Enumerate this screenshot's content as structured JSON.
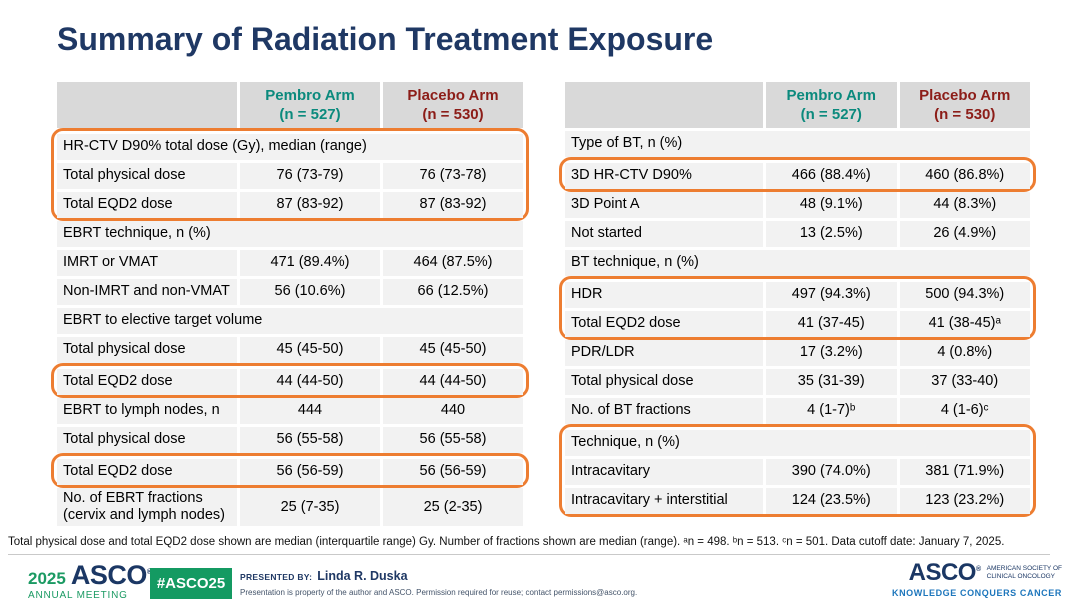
{
  "title": "Summary of Radiation Treatment Exposure",
  "columns": {
    "pembro": {
      "name": "Pembro Arm",
      "n": "(n = 527)"
    },
    "placebo": {
      "name": "Placebo Arm",
      "n": "(n = 530)"
    }
  },
  "left_table": {
    "rows": [
      {
        "label": "HR-CTV D90% total dose (Gy), median (range)",
        "section": true,
        "hl": "g1"
      },
      {
        "label": "Total physical dose",
        "indent": 1,
        "values": [
          "76 (73-79)",
          "76 (73-78)"
        ],
        "hl": "g1"
      },
      {
        "label": "Total EQD2 dose",
        "indent": 1,
        "values": [
          "87 (83-92)",
          "87 (83-92)"
        ],
        "hl": "g1"
      },
      {
        "label": "EBRT technique, n (%)",
        "section": true
      },
      {
        "label": "IMRT or VMAT",
        "indent": 1,
        "values": [
          "471 (89.4%)",
          "464 (87.5%)"
        ]
      },
      {
        "label": "Non-IMRT and non-VMAT",
        "indent": 1,
        "values": [
          "56 (10.6%)",
          "66 (12.5%)"
        ]
      },
      {
        "label": "EBRT to elective target volume",
        "section": true
      },
      {
        "label": "Total physical dose",
        "indent": 1,
        "values": [
          "45 (45-50)",
          "45 (45-50)"
        ]
      },
      {
        "label": "Total EQD2 dose",
        "indent": 1,
        "values": [
          "44 (44-50)",
          "44 (44-50)"
        ],
        "hl": "g2"
      },
      {
        "label": "EBRT to lymph nodes, n",
        "indent": 0,
        "values": [
          "444",
          "440"
        ]
      },
      {
        "label": "Total physical dose",
        "indent": 1,
        "values": [
          "56 (55-58)",
          "56 (55-58)"
        ]
      },
      {
        "label": "Total EQD2 dose",
        "indent": 1,
        "values": [
          "56 (56-59)",
          "56 (56-59)"
        ],
        "hl": "g3"
      },
      {
        "label": "No. of EBRT fractions (cervix and lymph nodes)",
        "indent": 0,
        "values": [
          "25 (7-35)",
          "25 (2-35)"
        ]
      }
    ]
  },
  "right_table": {
    "rows": [
      {
        "label": "Type of BT, n (%)",
        "section": true
      },
      {
        "label": "3D HR-CTV D90%",
        "indent": 1,
        "values": [
          "466 (88.4%)",
          "460 (86.8%)"
        ],
        "hl": "g1"
      },
      {
        "label": "3D Point A",
        "indent": 1,
        "values": [
          "48 (9.1%)",
          "44 (8.3%)"
        ]
      },
      {
        "label": "Not started",
        "indent": 1,
        "values": [
          "13 (2.5%)",
          "26 (4.9%)"
        ]
      },
      {
        "label": "BT technique, n (%)",
        "section": true
      },
      {
        "label": "HDR",
        "indent": 1,
        "values": [
          "497 (94.3%)",
          "500 (94.3%)"
        ],
        "hl": "g2"
      },
      {
        "label": "Total EQD2 dose",
        "indent": 2,
        "values": [
          "41 (37-45)",
          "41 (38-45)ᵃ"
        ],
        "hl": "g2"
      },
      {
        "label": "PDR/LDR",
        "indent": 1,
        "values": [
          "17 (3.2%)",
          "4 (0.8%)"
        ]
      },
      {
        "label": "Total physical dose",
        "indent": 2,
        "values": [
          "35 (31-39)",
          "37 (33-40)"
        ]
      },
      {
        "label": "No. of BT fractions",
        "indent": 0,
        "values": [
          "4 (1-7)ᵇ",
          "4 (1-6)ᶜ"
        ]
      },
      {
        "label": "Technique, n (%)",
        "section": true,
        "hl": "g3"
      },
      {
        "label": "Intracavitary",
        "indent": 1,
        "values": [
          "390 (74.0%)",
          "381 (71.9%)"
        ],
        "hl": "g3"
      },
      {
        "label": "Intracavitary + interstitial",
        "indent": 1,
        "values": [
          "124 (23.5%)",
          "123 (23.2%)"
        ],
        "hl": "g3"
      }
    ]
  },
  "footnote": "Total physical dose and total EQD2 dose shown are median (interquartile range) Gy. Number of fractions shown are median (range). ᵃn = 498. ᵇn = 513. ᶜn = 501. Data cutoff date: January 7, 2025.",
  "footer": {
    "year": "2025",
    "asco_wordmark": "ASCO",
    "reg": "®",
    "annual_meeting": "ANNUAL MEETING",
    "hashtag": "#ASCO25",
    "presented_by_label": "PRESENTED BY:",
    "presenter": "Linda R. Duska",
    "disclaimer": "Presentation is property of the author and ASCO. Permission required for reuse; contact permissions@asco.org.",
    "society_line1": "AMERICAN SOCIETY OF",
    "society_line2": "CLINICAL ONCOLOGY",
    "tagline": "KNOWLEDGE CONQUERS CANCER"
  },
  "colors": {
    "title_navy": "#1F3864",
    "pembro_teal": "#0B8A7D",
    "placebo_red": "#8C1D18",
    "highlight_orange": "#ED7D31",
    "header_gray": "#D9D9D9",
    "row_gray": "#F2F2F2",
    "asco_green": "#149A62",
    "asco_navy": "#1B3764",
    "tagline_blue": "#1D76BC"
  }
}
